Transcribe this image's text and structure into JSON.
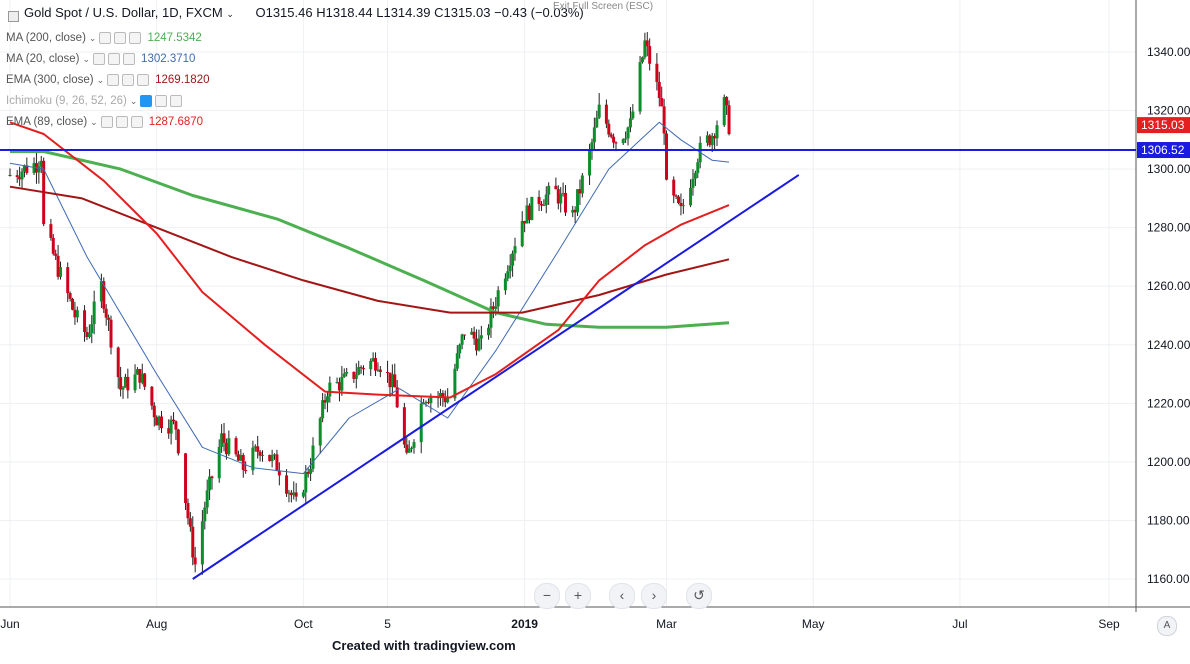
{
  "header": {
    "symbol": "Gold Spot / U.S. Dollar, 1D, FXCM",
    "open": "O1315.46",
    "high": "H1318.44",
    "low": "L1314.39",
    "close": "C1315.03",
    "change": "−0.43 (−0.03%)",
    "exit_fullscreen": "Exit Full Screen (ESC)"
  },
  "indicators": [
    {
      "label": "MA (200, close)",
      "value": "1247.5342",
      "color": "#4caf50"
    },
    {
      "label": "MA (20, close)",
      "value": "1302.3710",
      "color": "#3f6ab3"
    },
    {
      "label": "EMA (300, close)",
      "value": "1269.1820",
      "color": "#a31515"
    },
    {
      "label": "Ichimoku (9, 26, 52, 26)",
      "value": "",
      "color": "#999999"
    },
    {
      "label": "EMA (89, close)",
      "value": "1287.6870",
      "color": "#e31f1f"
    }
  ],
  "footer_text": "Created with tradingview.com",
  "nav_buttons": [
    "−",
    "+",
    "‹",
    "›",
    "↺"
  ],
  "corner_label": "A",
  "chart_data": {
    "type": "candlestick",
    "ylim": [
      1152,
      1352
    ],
    "y_ticks": [
      1160,
      1180,
      1200,
      1220,
      1240,
      1260,
      1280,
      1300,
      1320,
      1340
    ],
    "x_ticks": [
      "Jun",
      "Aug",
      "Oct",
      "5",
      "2019",
      "Mar",
      "May",
      "Jul",
      "Sep"
    ],
    "last_price": {
      "label": "1315.03",
      "value": 1315.03,
      "color": "#e31f1f"
    },
    "horizontal_line": {
      "label": "1306.52",
      "value": 1306.52,
      "color": "#1a1ae0"
    },
    "trendline": {
      "from": [
        "Aug 16",
        1160
      ],
      "to": [
        "Apr 25",
        1298
      ],
      "color": "#1a1ae0"
    },
    "price_path": [
      [
        "Jun 1",
        1298
      ],
      [
        "Jun 12",
        1302
      ],
      [
        "Jun 14",
        1305
      ],
      [
        "Jun 15",
        1280
      ],
      [
        "Jun 28",
        1250
      ],
      [
        "Jul 3",
        1243
      ],
      [
        "Jul 9",
        1260
      ],
      [
        "Jul 17",
        1225
      ],
      [
        "Jul 25",
        1230
      ],
      [
        "Aug 1",
        1215
      ],
      [
        "Aug 9",
        1212
      ],
      [
        "Aug 15",
        1175
      ],
      [
        "Aug 17",
        1165
      ],
      [
        "Aug 21",
        1185
      ],
      [
        "Aug 28",
        1208
      ],
      [
        "Sep 6",
        1198
      ],
      [
        "Sep 13",
        1205
      ],
      [
        "Sep 21",
        1198
      ],
      [
        "Sep 28",
        1185
      ],
      [
        "Oct 4",
        1200
      ],
      [
        "Oct 11",
        1225
      ],
      [
        "Oct 19",
        1228
      ],
      [
        "Oct 26",
        1233
      ],
      [
        "Nov 1",
        1235
      ],
      [
        "Nov 8",
        1225
      ],
      [
        "Nov 13",
        1200
      ],
      [
        "Nov 20",
        1223
      ],
      [
        "Nov 30",
        1222
      ],
      [
        "Dec 7",
        1245
      ],
      [
        "Dec 14",
        1240
      ],
      [
        "Dec 21",
        1258
      ],
      [
        "Dec 31",
        1283
      ],
      [
        "Jan 7",
        1290
      ],
      [
        "Jan 14",
        1292
      ],
      [
        "Jan 21",
        1284
      ],
      [
        "Jan 28",
        1305
      ],
      [
        "Feb 1",
        1320
      ],
      [
        "Feb 8",
        1310
      ],
      [
        "Feb 14",
        1315
      ],
      [
        "Feb 20",
        1343
      ],
      [
        "Feb 26",
        1325
      ],
      [
        "Feb 28",
        1315
      ],
      [
        "Mar 1",
        1293
      ],
      [
        "Mar 7",
        1285
      ],
      [
        "Mar 14",
        1305
      ],
      [
        "Mar 20",
        1312
      ],
      [
        "Mar 25",
        1322
      ],
      [
        "Mar 27",
        1315
      ]
    ],
    "series": [
      {
        "name": "MA (200, close)",
        "color": "#4caf50",
        "points": [
          [
            "Jun 1",
            1306
          ],
          [
            "Jun 15",
            1306
          ],
          [
            "Jul 17",
            1300
          ],
          [
            "Aug 16",
            1291
          ],
          [
            "Sep 20",
            1283
          ],
          [
            "Oct 20",
            1273
          ],
          [
            "Nov 20",
            1262
          ],
          [
            "Dec 20",
            1251
          ],
          [
            "Jan 10",
            1247
          ],
          [
            "Feb 1",
            1246
          ],
          [
            "Mar 1",
            1246
          ],
          [
            "Mar 27",
            1247.5
          ]
        ]
      },
      {
        "name": "MA (20, close)",
        "color": "#3f6ab3",
        "points": [
          [
            "Jun 1",
            1302
          ],
          [
            "Jun 15",
            1300
          ],
          [
            "Jul 3",
            1270
          ],
          [
            "Aug 1",
            1230
          ],
          [
            "Aug 20",
            1205
          ],
          [
            "Sep 10",
            1198
          ],
          [
            "Oct 1",
            1196
          ],
          [
            "Oct 20",
            1215
          ],
          [
            "Nov 10",
            1225
          ],
          [
            "Nov 30",
            1215
          ],
          [
            "Dec 20",
            1238
          ],
          [
            "Jan 15",
            1272
          ],
          [
            "Feb 5",
            1300
          ],
          [
            "Feb 26",
            1316
          ],
          [
            "Mar 7",
            1310
          ],
          [
            "Mar 20",
            1303
          ],
          [
            "Mar 27",
            1302.4
          ]
        ]
      },
      {
        "name": "EMA (300, close)",
        "color": "#a31515",
        "points": [
          [
            "Jun 1",
            1294
          ],
          [
            "Jul 1",
            1290
          ],
          [
            "Aug 1",
            1280
          ],
          [
            "Sep 1",
            1270
          ],
          [
            "Oct 1",
            1262
          ],
          [
            "Nov 1",
            1255
          ],
          [
            "Dec 1",
            1251
          ],
          [
            "Dec 31",
            1251
          ],
          [
            "Feb 1",
            1257
          ],
          [
            "Mar 1",
            1264
          ],
          [
            "Mar 27",
            1269.2
          ]
        ]
      },
      {
        "name": "EMA (89, close)",
        "color": "#e31f1f",
        "points": [
          [
            "Jun 1",
            1316
          ],
          [
            "Jun 15",
            1312
          ],
          [
            "Jul 10",
            1296
          ],
          [
            "Aug 1",
            1278
          ],
          [
            "Aug 20",
            1258
          ],
          [
            "Sep 15",
            1240
          ],
          [
            "Oct 10",
            1224
          ],
          [
            "Nov 1",
            1223
          ],
          [
            "Dec 1",
            1222
          ],
          [
            "Dec 20",
            1230
          ],
          [
            "Jan 15",
            1245
          ],
          [
            "Feb 1",
            1262
          ],
          [
            "Feb 20",
            1274
          ],
          [
            "Mar 7",
            1281
          ],
          [
            "Mar 27",
            1287.7
          ]
        ]
      }
    ]
  }
}
